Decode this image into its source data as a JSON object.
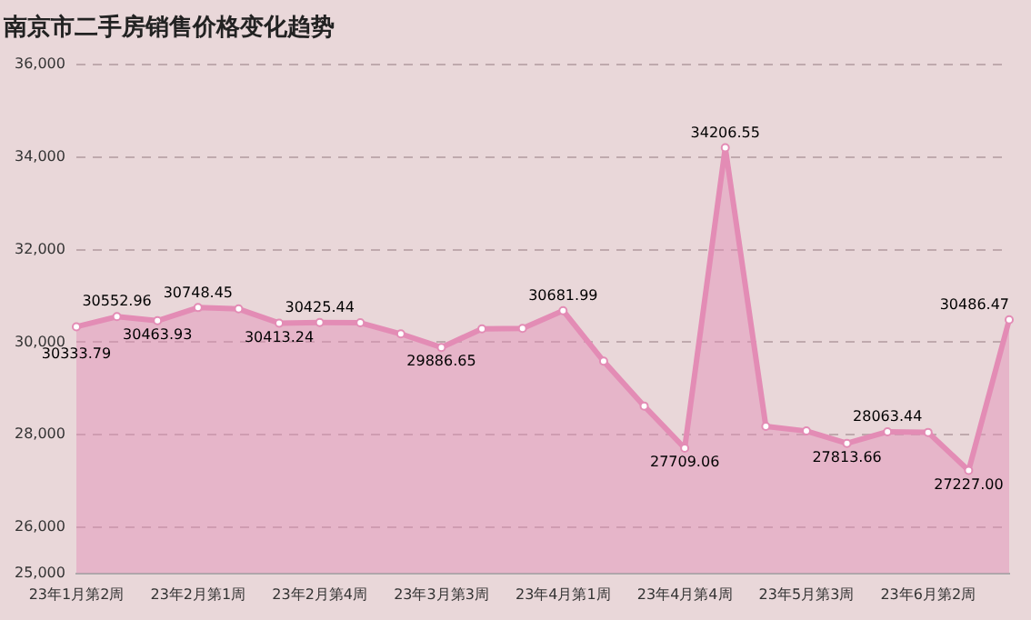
{
  "chart_data": {
    "type": "area",
    "title": "南京市二手房销售价格变化趋势",
    "categories": [
      "23年1月第2周",
      null,
      null,
      "23年2月第1周",
      null,
      null,
      "23年2月第4周",
      null,
      null,
      "23年3月第3周",
      null,
      null,
      "23年4月第1周",
      null,
      null,
      "23年4月第4周",
      null,
      null,
      "23年5月第3周",
      null,
      null,
      "23年6月第2周",
      null,
      null
    ],
    "series": [
      {
        "color": "#e38cb5",
        "values": [
          30333.79,
          30552.96,
          30463.93,
          30748.45,
          30720,
          30413.24,
          30425.44,
          30420,
          30180,
          29886.65,
          30290,
          30300,
          30681.99,
          29590,
          28620,
          27709.06,
          34206.55,
          28180,
          28080,
          27813.66,
          28063.44,
          28050,
          27227.0,
          30486.47
        ],
        "value_labels": [
          "30333.79",
          "30552.96",
          "30463.93",
          "30748.45",
          null,
          "30413.24",
          "30425.44",
          null,
          null,
          "29886.65",
          null,
          null,
          "30681.99",
          null,
          null,
          "27709.06",
          "34206.55",
          null,
          null,
          "27813.66",
          "28063.44",
          null,
          "27227.00",
          "30486.47"
        ]
      }
    ],
    "ylim": [
      25000,
      36000
    ],
    "yticks": [
      {
        "value": 25000,
        "label": "25,000"
      },
      {
        "value": 26000,
        "label": "26,000"
      },
      {
        "value": 28000,
        "label": "28,000"
      },
      {
        "value": 30000,
        "label": "30,000"
      },
      {
        "value": 32000,
        "label": "32,000"
      },
      {
        "value": 34000,
        "label": "34,000"
      },
      {
        "value": 36000,
        "label": "36,000"
      }
    ],
    "grid": "y",
    "legend": false,
    "marker": "circle",
    "line_style": "solid"
  }
}
